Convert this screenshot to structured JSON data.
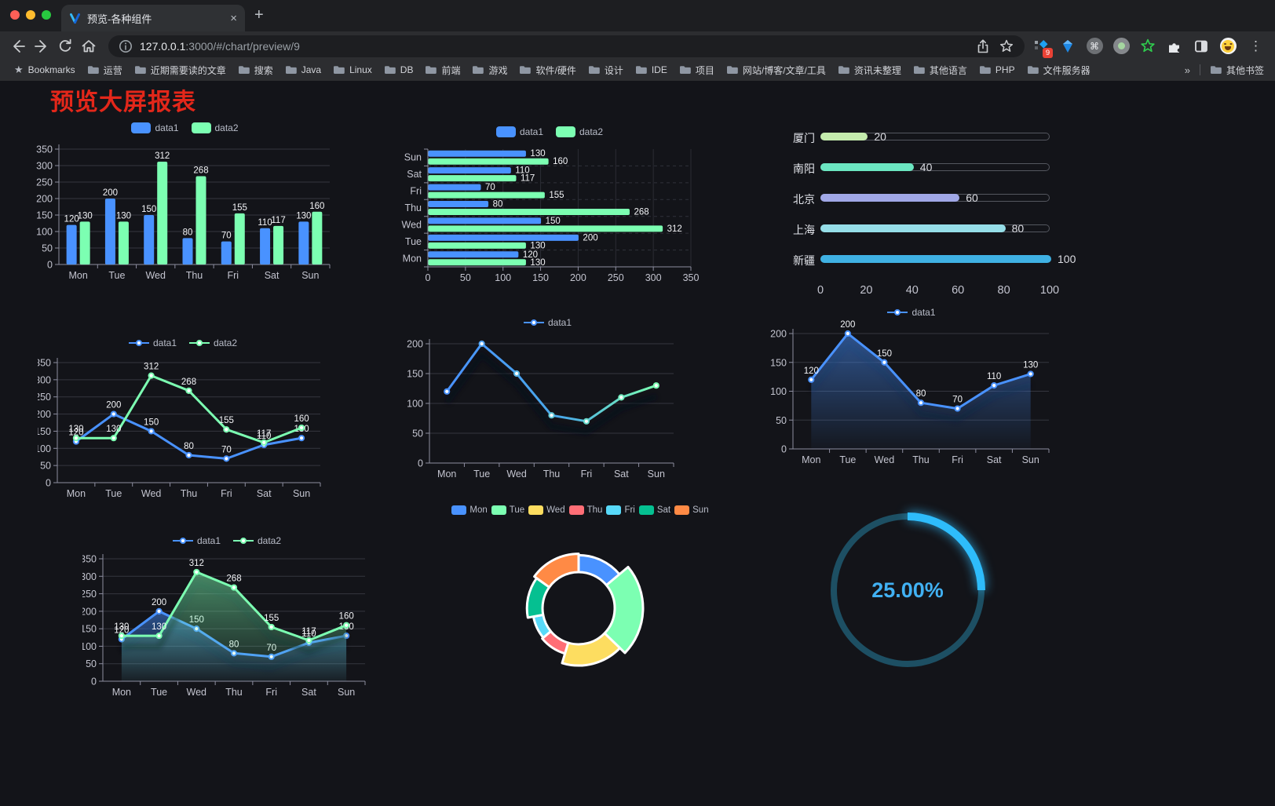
{
  "browser": {
    "tab": {
      "title": "预览-各种组件"
    },
    "icons": {
      "close": "×",
      "new_tab": "+",
      "menu": "⋮",
      "command": "⌘",
      "star": "★",
      "overflow": "»"
    },
    "url": {
      "host": "127.0.0.1",
      "rest": ":3000/#/chart/preview/9"
    },
    "extensions_badge": "9",
    "bookmarks_label": "Bookmarks",
    "bookmarks": [
      "运营",
      "近期需要读的文章",
      "搜索",
      "Java",
      "Linux",
      "DB",
      "前端",
      "游戏",
      "软件/硬件",
      "设计",
      "IDE",
      "项目",
      "网站/博客/文章/工具",
      "资讯未整理",
      "其他语言",
      "PHP",
      "文件服务器"
    ],
    "other_bookmarks": "其他书签"
  },
  "page": {
    "title": "预览大屏报表",
    "title_color": "#e3271a"
  },
  "colors": {
    "data1": "#4992ff",
    "data2": "#7cffb2",
    "gauge": "#2ebcfb"
  },
  "chart_data": [
    {
      "type": "bar",
      "categories": [
        "Mon",
        "Tue",
        "Wed",
        "Thu",
        "Fri",
        "Sat",
        "Sun"
      ],
      "series": [
        {
          "name": "data1",
          "color": "#4992ff",
          "values": [
            120,
            200,
            150,
            80,
            70,
            110,
            130
          ]
        },
        {
          "name": "data2",
          "color": "#7cffb2",
          "values": [
            130,
            130,
            312,
            268,
            155,
            117,
            160
          ]
        }
      ],
      "ylim": [
        0,
        350
      ],
      "ytick": 50,
      "legend_position": "top",
      "labels": true
    },
    {
      "type": "bar-horizontal",
      "categories": [
        "Mon",
        "Tue",
        "Wed",
        "Thu",
        "Fri",
        "Sat",
        "Sun"
      ],
      "series": [
        {
          "name": "data1",
          "color": "#4992ff",
          "values": [
            120,
            200,
            150,
            80,
            70,
            110,
            130
          ]
        },
        {
          "name": "data2",
          "color": "#7cffb2",
          "values": [
            130,
            130,
            312,
            268,
            155,
            117,
            160
          ]
        }
      ],
      "xlim": [
        0,
        350
      ],
      "xtick": 50,
      "legend_position": "top",
      "labels": true
    },
    {
      "type": "capsule-bar",
      "categories": [
        "厦门",
        "南阳",
        "北京",
        "上海",
        "新疆"
      ],
      "values": [
        20,
        40,
        60,
        80,
        100
      ],
      "colors": [
        "#c4ebad",
        "#6be6c1",
        "#a0a7e6",
        "#96dee8",
        "#3fb1e3"
      ],
      "xlim": [
        0,
        100
      ],
      "xticks": [
        0,
        20,
        40,
        60,
        80,
        100
      ]
    },
    {
      "type": "line",
      "categories": [
        "Mon",
        "Tue",
        "Wed",
        "Thu",
        "Fri",
        "Sat",
        "Sun"
      ],
      "series": [
        {
          "name": "data1",
          "color": "#4992ff",
          "values": [
            120,
            200,
            150,
            80,
            70,
            110,
            130
          ]
        },
        {
          "name": "data2",
          "color": "#7cffb2",
          "values": [
            130,
            130,
            312,
            268,
            155,
            117,
            160
          ]
        }
      ],
      "ylim": [
        0,
        350
      ],
      "ytick": 50,
      "labels": true
    },
    {
      "type": "line",
      "categories": [
        "Mon",
        "Tue",
        "Wed",
        "Thu",
        "Fri",
        "Sat",
        "Sun"
      ],
      "series": [
        {
          "name": "data1",
          "color_start": "#4992ff",
          "color_end": "#7cffb2",
          "values": [
            120,
            200,
            150,
            80,
            70,
            110,
            130
          ]
        }
      ],
      "ylim": [
        0,
        200
      ],
      "ytick": 50,
      "labels": false,
      "line_gradient": true
    },
    {
      "type": "area",
      "categories": [
        "Mon",
        "Tue",
        "Wed",
        "Thu",
        "Fri",
        "Sat",
        "Sun"
      ],
      "series": [
        {
          "name": "data1",
          "color": "#4992ff",
          "values": [
            120,
            200,
            150,
            80,
            70,
            110,
            130
          ]
        }
      ],
      "ylim": [
        0,
        200
      ],
      "ytick": 50,
      "labels": true
    },
    {
      "type": "area",
      "categories": [
        "Mon",
        "Tue",
        "Wed",
        "Thu",
        "Fri",
        "Sat",
        "Sun"
      ],
      "series": [
        {
          "name": "data1",
          "color": "#4992ff",
          "values": [
            120,
            200,
            150,
            80,
            70,
            110,
            130
          ]
        },
        {
          "name": "data2",
          "color": "#7cffb2",
          "values": [
            130,
            130,
            312,
            268,
            155,
            117,
            160
          ]
        }
      ],
      "ylim": [
        0,
        350
      ],
      "ytick": 50,
      "labels": true
    },
    {
      "type": "pie",
      "subtype": "rose-donut",
      "categories": [
        "Mon",
        "Tue",
        "Wed",
        "Thu",
        "Fri",
        "Sat",
        "Sun"
      ],
      "values": [
        120,
        200,
        150,
        80,
        70,
        110,
        130
      ],
      "colors": [
        "#4992ff",
        "#7cffb2",
        "#fddd60",
        "#ff6e76",
        "#58d9f9",
        "#05c091",
        "#ff8a45"
      ],
      "legend_position": "top"
    },
    {
      "type": "gauge",
      "label": "25.00%",
      "percent": 25,
      "color": "#2ebcfb",
      "track_color": "#1d4f63"
    }
  ]
}
